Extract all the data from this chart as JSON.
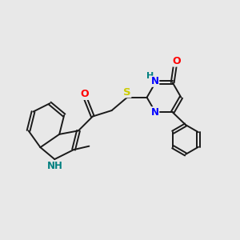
{
  "background_color": "#e8e8e8",
  "bond_color": "#1a1a1a",
  "atom_colors": {
    "N": "#0000ff",
    "O": "#ff0000",
    "S": "#cccc00",
    "NH_indole": "#008080",
    "NH_pyrim": "#008080",
    "C": "#1a1a1a"
  },
  "lw": 1.4,
  "font_size": 8.5,
  "figsize": [
    3.0,
    3.0
  ],
  "dpi": 100
}
